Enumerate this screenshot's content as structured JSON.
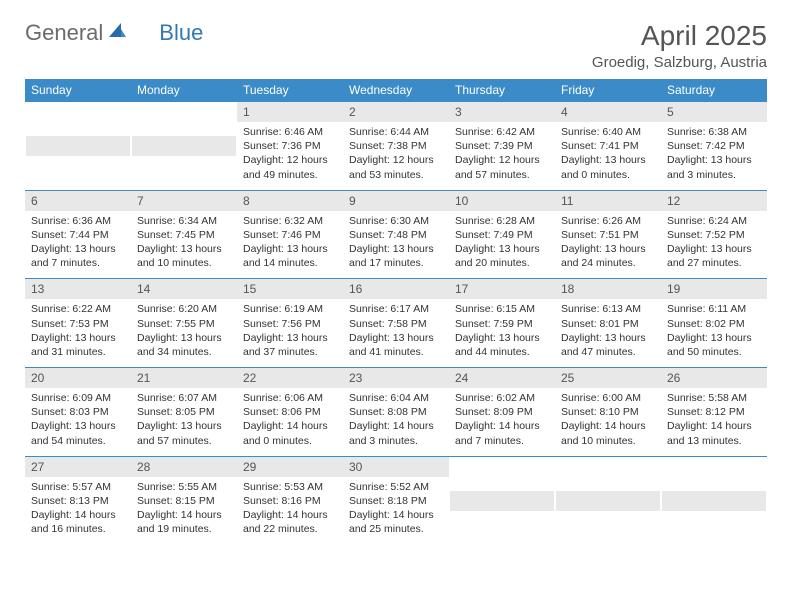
{
  "brand": {
    "text1": "General",
    "text2": "Blue"
  },
  "title": "April 2025",
  "location": "Groedig, Salzburg, Austria",
  "colors": {
    "header_bg": "#3b8bc9",
    "header_text": "#ffffff",
    "daynum_bg": "#e8e8e8",
    "border": "#3b8bc9",
    "brand_gray": "#6b6b6b",
    "brand_blue": "#3178b8"
  },
  "typography": {
    "title_fontsize": 28,
    "location_fontsize": 15,
    "weekday_fontsize": 12,
    "daynum_fontsize": 12,
    "content_fontsize": 10.5
  },
  "weekdays": [
    "Sunday",
    "Monday",
    "Tuesday",
    "Wednesday",
    "Thursday",
    "Friday",
    "Saturday"
  ],
  "weeks": [
    [
      null,
      null,
      {
        "n": "1",
        "sr": "6:46 AM",
        "ss": "7:36 PM",
        "dl": "12 hours and 49 minutes."
      },
      {
        "n": "2",
        "sr": "6:44 AM",
        "ss": "7:38 PM",
        "dl": "12 hours and 53 minutes."
      },
      {
        "n": "3",
        "sr": "6:42 AM",
        "ss": "7:39 PM",
        "dl": "12 hours and 57 minutes."
      },
      {
        "n": "4",
        "sr": "6:40 AM",
        "ss": "7:41 PM",
        "dl": "13 hours and 0 minutes."
      },
      {
        "n": "5",
        "sr": "6:38 AM",
        "ss": "7:42 PM",
        "dl": "13 hours and 3 minutes."
      }
    ],
    [
      {
        "n": "6",
        "sr": "6:36 AM",
        "ss": "7:44 PM",
        "dl": "13 hours and 7 minutes."
      },
      {
        "n": "7",
        "sr": "6:34 AM",
        "ss": "7:45 PM",
        "dl": "13 hours and 10 minutes."
      },
      {
        "n": "8",
        "sr": "6:32 AM",
        "ss": "7:46 PM",
        "dl": "13 hours and 14 minutes."
      },
      {
        "n": "9",
        "sr": "6:30 AM",
        "ss": "7:48 PM",
        "dl": "13 hours and 17 minutes."
      },
      {
        "n": "10",
        "sr": "6:28 AM",
        "ss": "7:49 PM",
        "dl": "13 hours and 20 minutes."
      },
      {
        "n": "11",
        "sr": "6:26 AM",
        "ss": "7:51 PM",
        "dl": "13 hours and 24 minutes."
      },
      {
        "n": "12",
        "sr": "6:24 AM",
        "ss": "7:52 PM",
        "dl": "13 hours and 27 minutes."
      }
    ],
    [
      {
        "n": "13",
        "sr": "6:22 AM",
        "ss": "7:53 PM",
        "dl": "13 hours and 31 minutes."
      },
      {
        "n": "14",
        "sr": "6:20 AM",
        "ss": "7:55 PM",
        "dl": "13 hours and 34 minutes."
      },
      {
        "n": "15",
        "sr": "6:19 AM",
        "ss": "7:56 PM",
        "dl": "13 hours and 37 minutes."
      },
      {
        "n": "16",
        "sr": "6:17 AM",
        "ss": "7:58 PM",
        "dl": "13 hours and 41 minutes."
      },
      {
        "n": "17",
        "sr": "6:15 AM",
        "ss": "7:59 PM",
        "dl": "13 hours and 44 minutes."
      },
      {
        "n": "18",
        "sr": "6:13 AM",
        "ss": "8:01 PM",
        "dl": "13 hours and 47 minutes."
      },
      {
        "n": "19",
        "sr": "6:11 AM",
        "ss": "8:02 PM",
        "dl": "13 hours and 50 minutes."
      }
    ],
    [
      {
        "n": "20",
        "sr": "6:09 AM",
        "ss": "8:03 PM",
        "dl": "13 hours and 54 minutes."
      },
      {
        "n": "21",
        "sr": "6:07 AM",
        "ss": "8:05 PM",
        "dl": "13 hours and 57 minutes."
      },
      {
        "n": "22",
        "sr": "6:06 AM",
        "ss": "8:06 PM",
        "dl": "14 hours and 0 minutes."
      },
      {
        "n": "23",
        "sr": "6:04 AM",
        "ss": "8:08 PM",
        "dl": "14 hours and 3 minutes."
      },
      {
        "n": "24",
        "sr": "6:02 AM",
        "ss": "8:09 PM",
        "dl": "14 hours and 7 minutes."
      },
      {
        "n": "25",
        "sr": "6:00 AM",
        "ss": "8:10 PM",
        "dl": "14 hours and 10 minutes."
      },
      {
        "n": "26",
        "sr": "5:58 AM",
        "ss": "8:12 PM",
        "dl": "14 hours and 13 minutes."
      }
    ],
    [
      {
        "n": "27",
        "sr": "5:57 AM",
        "ss": "8:13 PM",
        "dl": "14 hours and 16 minutes."
      },
      {
        "n": "28",
        "sr": "5:55 AM",
        "ss": "8:15 PM",
        "dl": "14 hours and 19 minutes."
      },
      {
        "n": "29",
        "sr": "5:53 AM",
        "ss": "8:16 PM",
        "dl": "14 hours and 22 minutes."
      },
      {
        "n": "30",
        "sr": "5:52 AM",
        "ss": "8:18 PM",
        "dl": "14 hours and 25 minutes."
      },
      null,
      null,
      null
    ]
  ],
  "labels": {
    "sunrise": "Sunrise: ",
    "sunset": "Sunset: ",
    "daylight": "Daylight: "
  }
}
